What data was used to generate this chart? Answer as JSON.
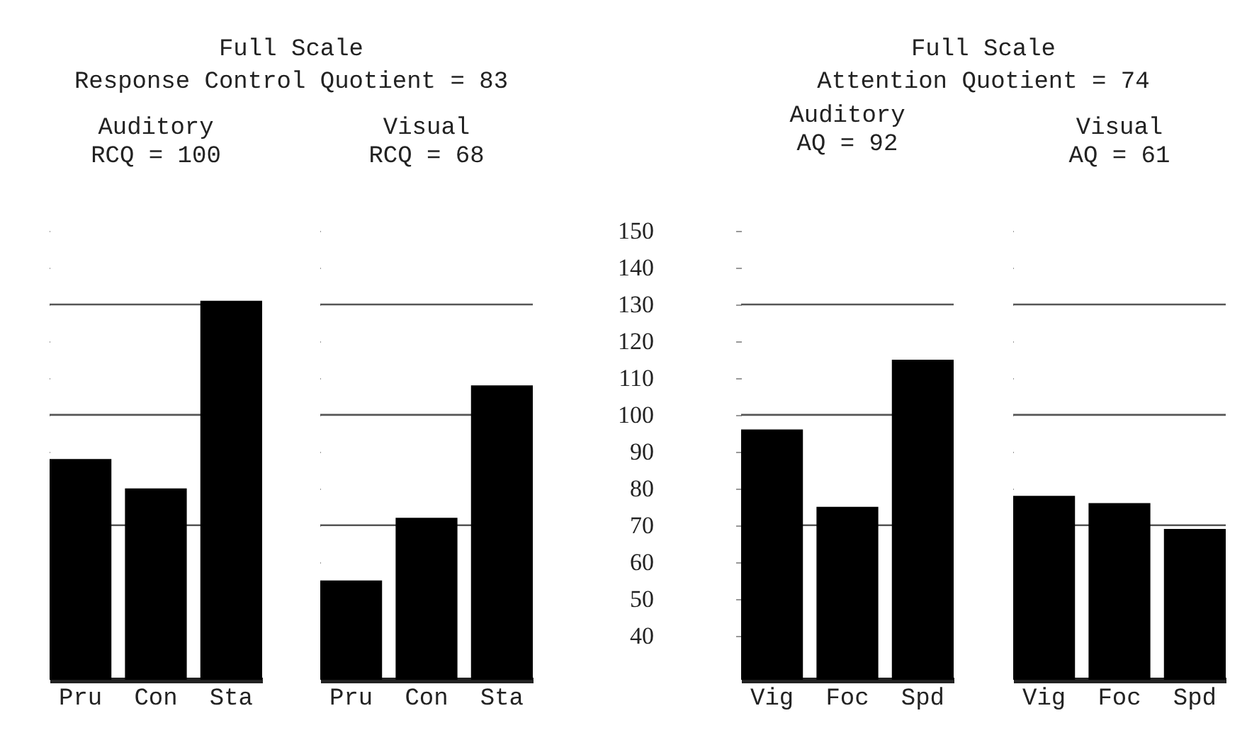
{
  "chart_data": [
    {
      "type": "bar",
      "title": "Auditory",
      "subtitle": "RCQ = 100",
      "annotations": [
        "Full Scale",
        "Response Control Quotient = 83"
      ],
      "categories": [
        "Pru",
        "Con",
        "Sta"
      ],
      "values": [
        88,
        80,
        131
      ],
      "color": "#000000",
      "ylim": [
        28,
        150
      ],
      "yticks": [
        40,
        50,
        60,
        70,
        80,
        90,
        100,
        110,
        120,
        130,
        140,
        150
      ],
      "tick_labels": "x",
      "ref_lines": [
        {
          "axis": "y",
          "value": 70
        },
        {
          "axis": "y",
          "value": 100
        },
        {
          "axis": "y",
          "value": 130
        }
      ]
    },
    {
      "type": "bar",
      "title": "Visual",
      "subtitle": "RCQ =    68",
      "categories": [
        "Pru",
        "Con",
        "Sta"
      ],
      "values": [
        55,
        72,
        108
      ],
      "color": "#000000",
      "ylim": [
        28,
        150
      ],
      "yticks": [
        40,
        50,
        60,
        70,
        80,
        90,
        100,
        110,
        120,
        130,
        140,
        150
      ],
      "tick_labels": "x",
      "ref_lines": [
        {
          "axis": "y",
          "value": 70
        },
        {
          "axis": "y",
          "value": 100
        },
        {
          "axis": "y",
          "value": 130
        }
      ]
    },
    {
      "type": "bar",
      "title": "Auditory",
      "subtitle": "AQ =  92",
      "annotations": [
        "Full Scale",
        "Attention Quotient = 74"
      ],
      "categories": [
        "Vig",
        "Foc",
        "Spd"
      ],
      "values": [
        96,
        75,
        115
      ],
      "color": "#000000",
      "ylim": [
        28,
        150
      ],
      "yticks": [
        40,
        50,
        60,
        70,
        80,
        90,
        100,
        110,
        120,
        130,
        140,
        150
      ],
      "ref_lines": [
        {
          "axis": "y",
          "value": 70
        },
        {
          "axis": "y",
          "value": 100
        },
        {
          "axis": "y",
          "value": 130
        }
      ]
    },
    {
      "type": "bar",
      "title": "Visual",
      "subtitle": "AQ =  61",
      "categories": [
        "Vig",
        "Foc",
        "Spd"
      ],
      "values": [
        78,
        76,
        69
      ],
      "color": "#000000",
      "ylim": [
        28,
        150
      ],
      "yticks": [
        40,
        50,
        60,
        70,
        80,
        90,
        100,
        110,
        120,
        130,
        140,
        150
      ],
      "tick_labels": "x",
      "ref_lines": [
        {
          "axis": "y",
          "value": 70
        },
        {
          "axis": "y",
          "value": 100
        },
        {
          "axis": "y",
          "value": 130
        }
      ]
    }
  ]
}
